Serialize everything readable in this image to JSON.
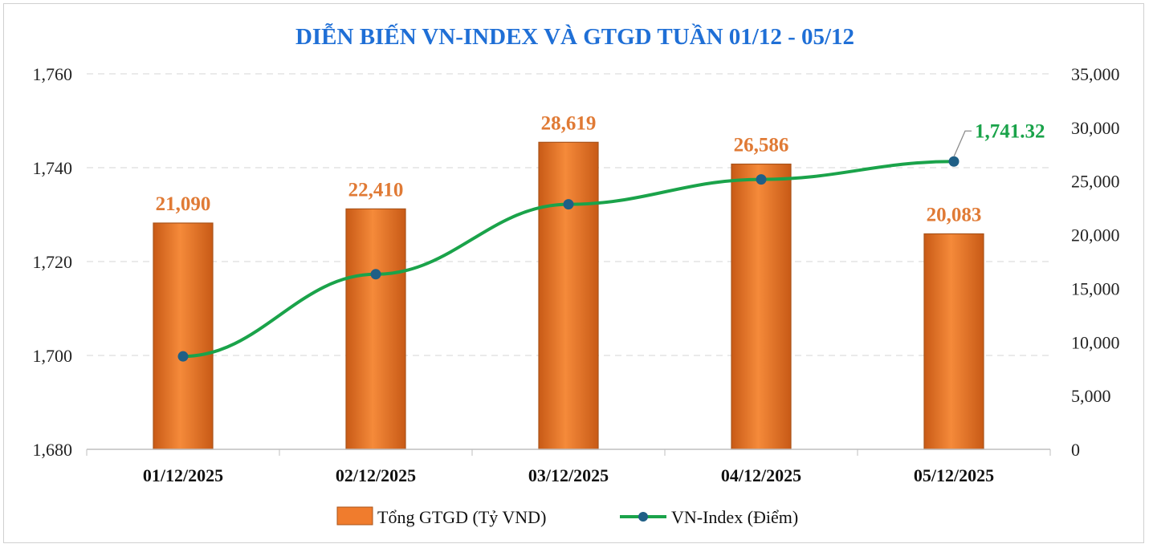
{
  "chart_data": {
    "type": "bar+line",
    "title": "DIỄN BIẾN VN-INDEX VÀ GTGD TUẦN 01/12 - 05/12",
    "categories": [
      "01/12/2025",
      "02/12/2025",
      "03/12/2025",
      "04/12/2025",
      "05/12/2025"
    ],
    "series": [
      {
        "name": "Tổng GTGD (Tỷ VND)",
        "type": "bar",
        "axis": "right",
        "values": [
          21090,
          22410,
          28619,
          26586,
          20083
        ],
        "labels": [
          "21,090",
          "22,410",
          "28,619",
          "26,586",
          "20,083"
        ],
        "color": "#f07c2d"
      },
      {
        "name": "VN-Index (Điểm)",
        "type": "line",
        "axis": "left",
        "values": [
          1699.8,
          1717.3,
          1732.2,
          1737.5,
          1741.32
        ],
        "end_label": "1,741.32",
        "color": "#1aa34a",
        "marker_color": "#1f5f86"
      }
    ],
    "left_axis": {
      "min": 1680,
      "max": 1760,
      "ticks": [
        "1,680",
        "1,700",
        "1,720",
        "1,740",
        "1,760"
      ],
      "tick_values": [
        1680,
        1700,
        1720,
        1740,
        1760
      ]
    },
    "right_axis": {
      "min": 0,
      "max": 35000,
      "ticks": [
        "0",
        "5,000",
        "10,000",
        "15,000",
        "20,000",
        "25,000",
        "30,000",
        "35,000"
      ],
      "tick_values": [
        0,
        5000,
        10000,
        15000,
        20000,
        25000,
        30000,
        35000
      ]
    },
    "grid": true,
    "legend_position": "bottom"
  }
}
